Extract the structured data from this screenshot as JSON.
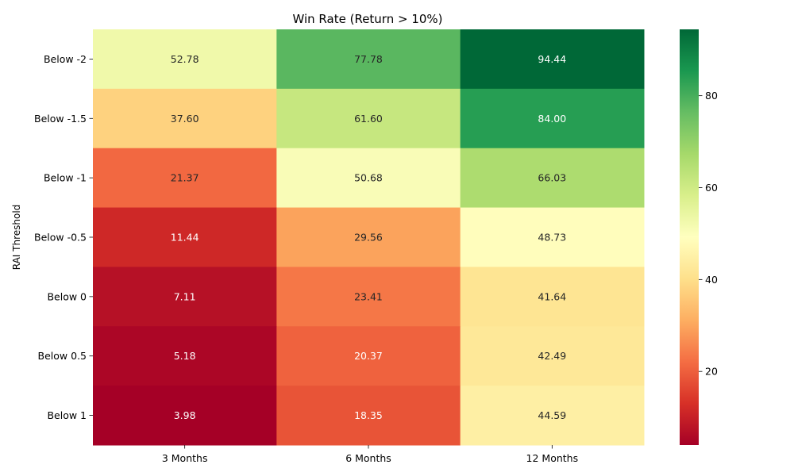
{
  "chart_data": {
    "type": "heatmap",
    "title": "Win Rate (Return > 10%)",
    "xlabel": "",
    "ylabel": "RAI Threshold",
    "x_categories": [
      "3 Months",
      "6 Months",
      "12 Months"
    ],
    "y_categories": [
      "Below -2",
      "Below -1.5",
      "Below -1",
      "Below -0.5",
      "Below 0",
      "Below 0.5",
      "Below 1"
    ],
    "values": [
      [
        52.78,
        77.78,
        94.44
      ],
      [
        37.6,
        61.6,
        84.0
      ],
      [
        21.37,
        50.68,
        66.03
      ],
      [
        11.44,
        29.56,
        48.73
      ],
      [
        7.11,
        23.41,
        41.64
      ],
      [
        5.18,
        20.37,
        42.49
      ],
      [
        3.98,
        18.35,
        44.59
      ]
    ],
    "value_labels": [
      [
        "52.78",
        "77.78",
        "94.44"
      ],
      [
        "37.60",
        "61.60",
        "84.00"
      ],
      [
        "21.37",
        "50.68",
        "66.03"
      ],
      [
        "11.44",
        "29.56",
        "48.73"
      ],
      [
        "7.11",
        "23.41",
        "41.64"
      ],
      [
        "5.18",
        "20.37",
        "42.49"
      ],
      [
        "3.98",
        "18.35",
        "44.59"
      ]
    ],
    "colormap": "RdYlGn",
    "color_range": [
      3.98,
      94.44
    ],
    "colorbar_ticks": [
      20,
      40,
      60,
      80
    ],
    "colorbar_tick_labels": [
      "20",
      "40",
      "60",
      "80"
    ],
    "grid": false
  }
}
